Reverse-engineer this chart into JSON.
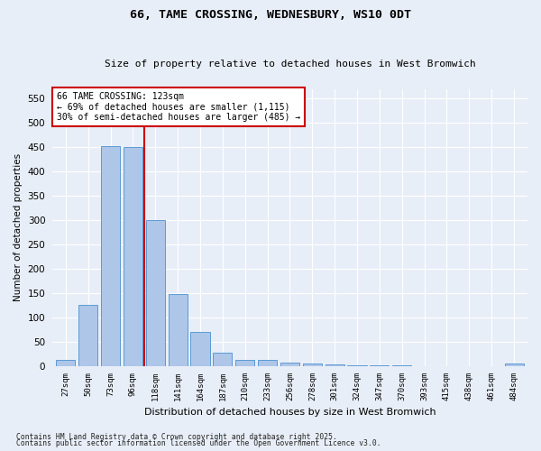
{
  "title1": "66, TAME CROSSING, WEDNESBURY, WS10 0DT",
  "title2": "Size of property relative to detached houses in West Bromwich",
  "xlabel": "Distribution of detached houses by size in West Bromwich",
  "ylabel": "Number of detached properties",
  "categories": [
    "27sqm",
    "50sqm",
    "73sqm",
    "96sqm",
    "118sqm",
    "141sqm",
    "164sqm",
    "187sqm",
    "210sqm",
    "233sqm",
    "256sqm",
    "278sqm",
    "301sqm",
    "324sqm",
    "347sqm",
    "370sqm",
    "393sqm",
    "415sqm",
    "438sqm",
    "461sqm",
    "484sqm"
  ],
  "values": [
    12,
    125,
    452,
    450,
    300,
    148,
    70,
    27,
    13,
    13,
    7,
    5,
    3,
    2,
    1,
    1,
    0,
    0,
    0,
    0,
    5
  ],
  "bar_color": "#aec6e8",
  "bar_edge_color": "#5b9bd5",
  "vline_x": 3.5,
  "vline_color": "#cc0000",
  "annotation_title": "66 TAME CROSSING: 123sqm",
  "annotation_line1": "← 69% of detached houses are smaller (1,115)",
  "annotation_line2": "30% of semi-detached houses are larger (485) →",
  "annotation_box_color": "#cc0000",
  "ylim": [
    0,
    570
  ],
  "yticks": [
    0,
    50,
    100,
    150,
    200,
    250,
    300,
    350,
    400,
    450,
    500,
    550
  ],
  "footer1": "Contains HM Land Registry data © Crown copyright and database right 2025.",
  "footer2": "Contains public sector information licensed under the Open Government Licence v3.0.",
  "bg_color": "#e8eef7",
  "grid_color": "#ffffff"
}
